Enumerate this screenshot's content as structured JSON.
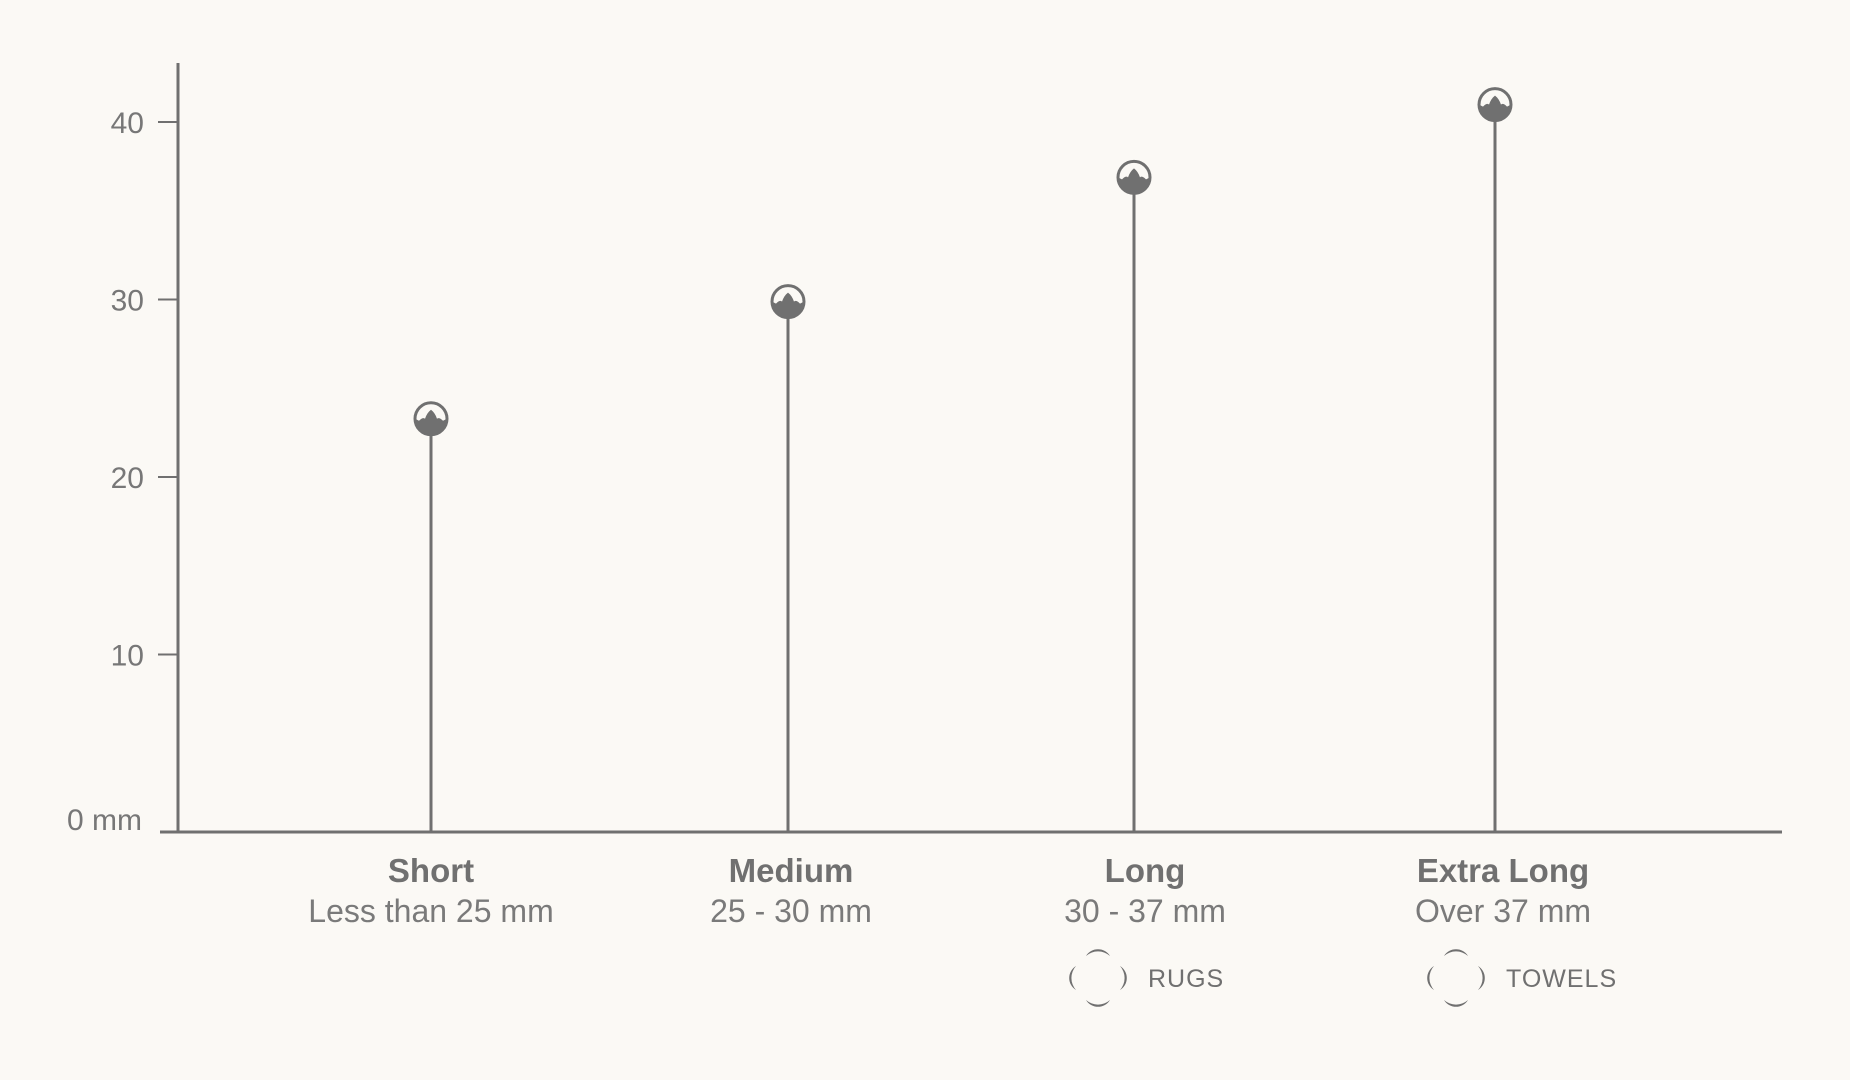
{
  "chart_data": {
    "type": "lollipop",
    "title": "",
    "xlabel": "",
    "ylabel": "",
    "ylim": [
      0,
      43
    ],
    "yticks": [
      0,
      10,
      20,
      30,
      40
    ],
    "ytick_labels": [
      "0 mm",
      "10",
      "20",
      "30",
      "40"
    ],
    "grid": false,
    "categories": [
      {
        "name": "Short",
        "range": "Less than 25 mm",
        "value": 23,
        "use": ""
      },
      {
        "name": "Medium",
        "range": "25 - 30 mm",
        "value": 29.6,
        "use": ""
      },
      {
        "name": "Long",
        "range": "30 - 37 mm",
        "value": 36.6,
        "use": "RUGS"
      },
      {
        "name": "Extra Long",
        "range": "Over 37 mm",
        "value": 40.7,
        "use": "TOWELS"
      }
    ],
    "marker_icon": "cotton-boll-icon",
    "use_icon": "quatrefoil-icon",
    "colors": {
      "ink": "#707070",
      "background": "#fbf9f5"
    }
  }
}
